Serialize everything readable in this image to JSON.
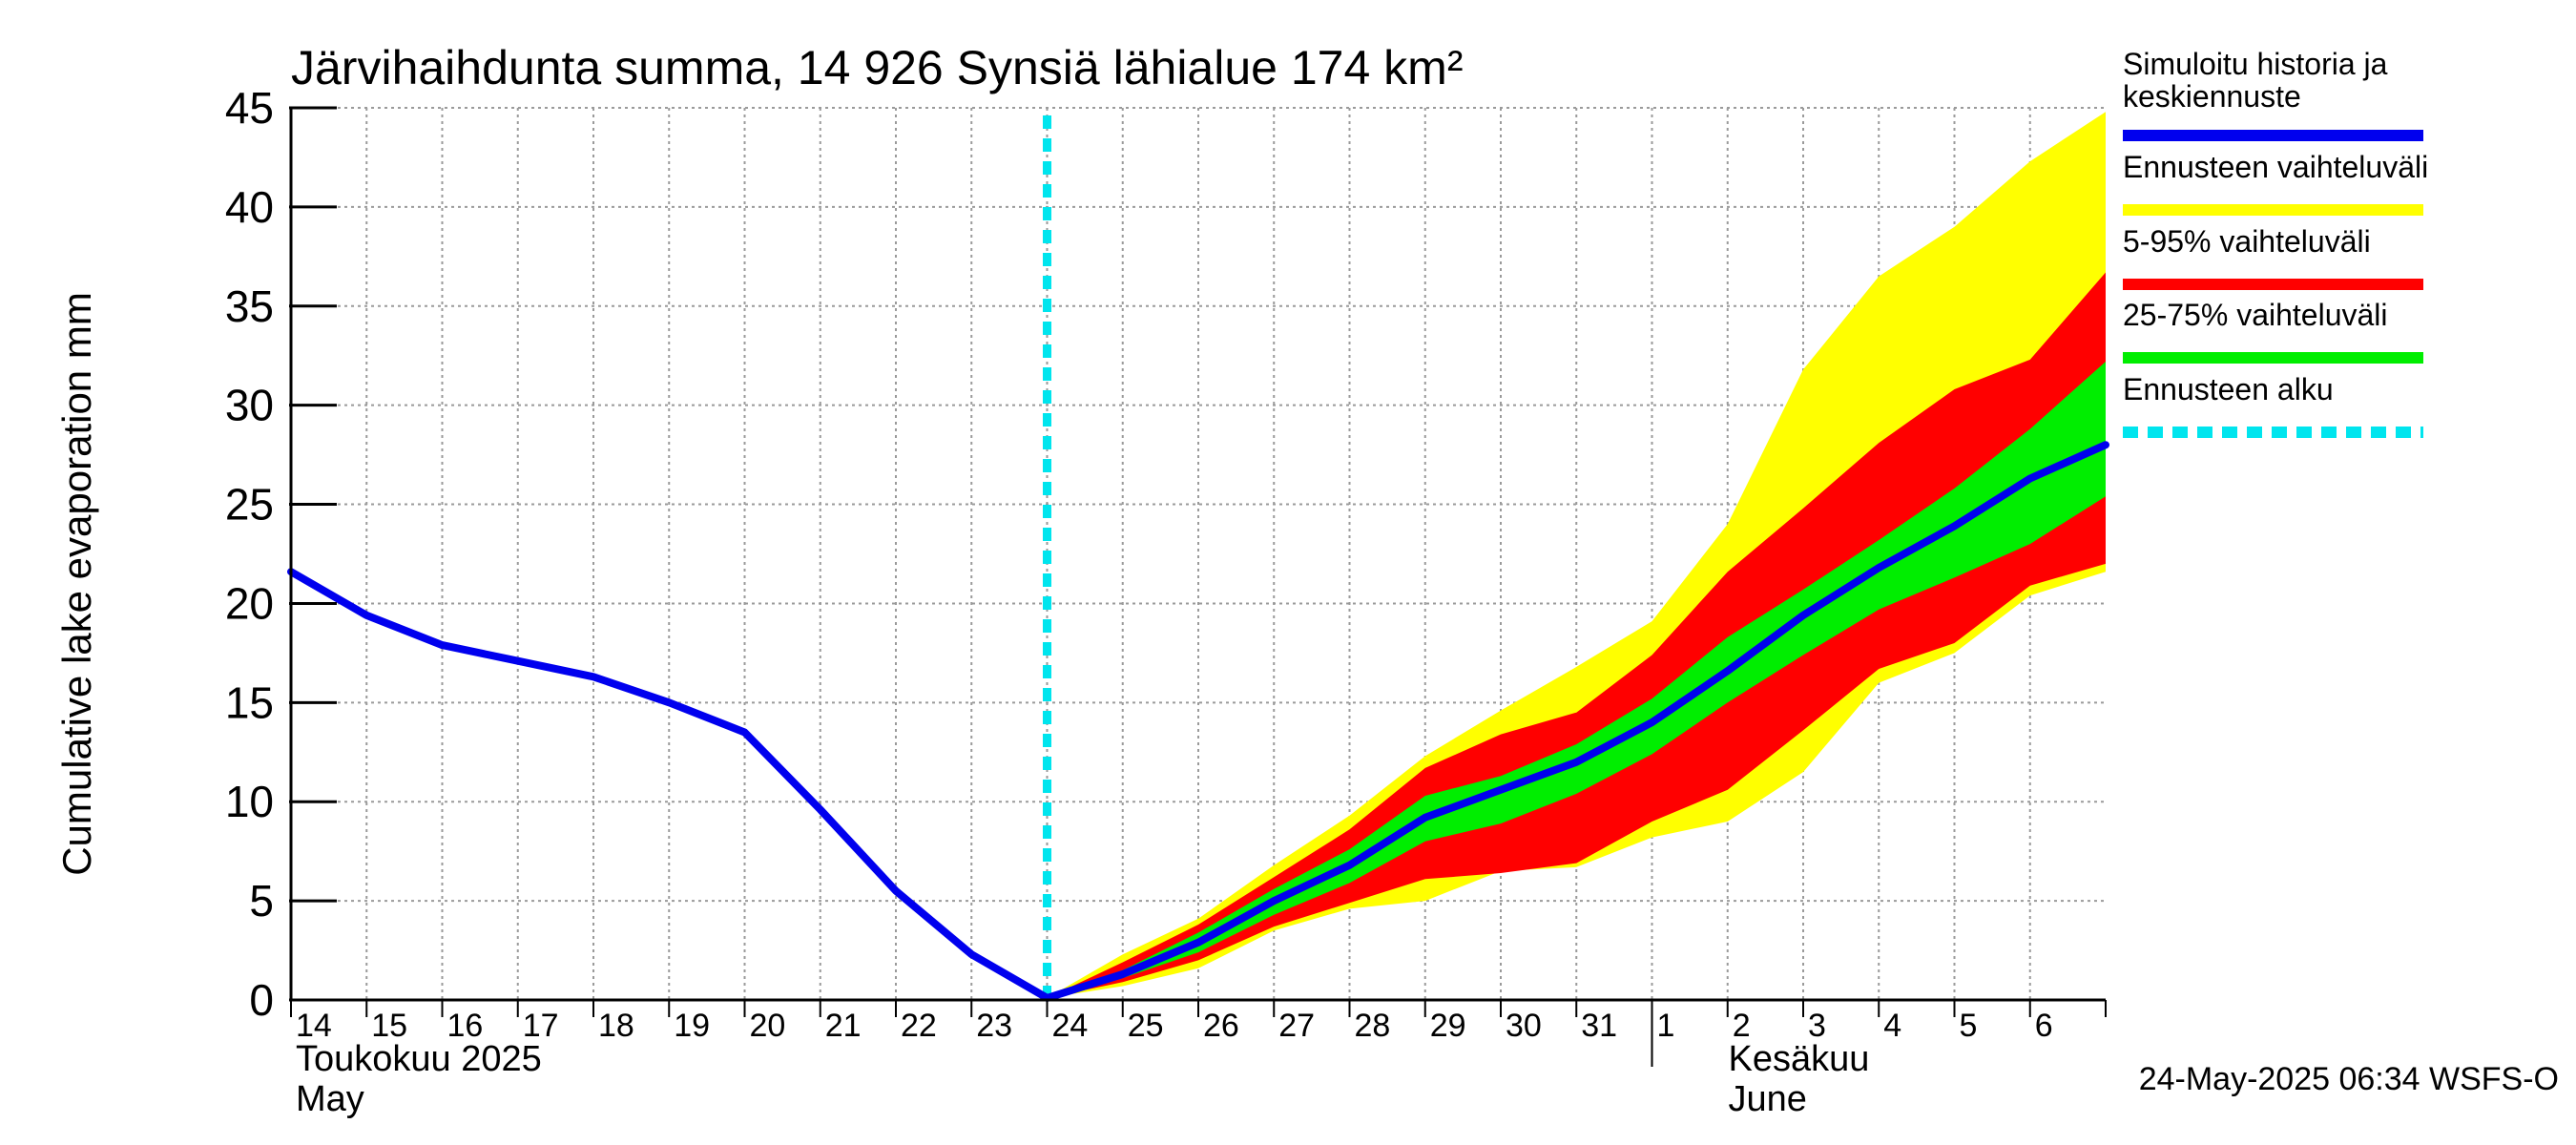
{
  "chart_data": {
    "type": "area",
    "title": "Järvihaihdunta summa, 14 926 Synsiä lähialue 174 km²",
    "ylabel": "Cumulative lake evaporation   mm",
    "xlabel": "",
    "ylim": [
      0,
      45
    ],
    "yticks": [
      0,
      5,
      10,
      15,
      20,
      25,
      30,
      35,
      40,
      45
    ],
    "x_range": [
      "2025-05-14",
      "2025-06-07"
    ],
    "x_tick_labels": [
      "14",
      "15",
      "16",
      "17",
      "18",
      "19",
      "20",
      "21",
      "22",
      "23",
      "24",
      "25",
      "26",
      "27",
      "28",
      "29",
      "30",
      "31",
      "1",
      "2",
      "3",
      "4",
      "5",
      "6"
    ],
    "month_labels": [
      {
        "fi": "Toukokuu  2025",
        "en": "May",
        "start": "2025-05-14"
      },
      {
        "fi": "Kesäkuu",
        "en": "June",
        "start": "2025-06-01"
      }
    ],
    "grid": true,
    "legend_position": "right",
    "forecast_start": "2025-05-24",
    "series": [
      {
        "name": "Simuloitu historia ja keskiennuste",
        "color": "#0000ee",
        "x": [
          "2025-05-14",
          "2025-05-15",
          "2025-05-16",
          "2025-05-17",
          "2025-05-18",
          "2025-05-19",
          "2025-05-20",
          "2025-05-21",
          "2025-05-22",
          "2025-05-23",
          "2025-05-24",
          "2025-05-25",
          "2025-05-26",
          "2025-05-27",
          "2025-05-28",
          "2025-05-29",
          "2025-05-30",
          "2025-05-31",
          "2025-06-01",
          "2025-06-02",
          "2025-06-03",
          "2025-06-04",
          "2025-06-05",
          "2025-06-06",
          "2025-06-07"
        ],
        "values": [
          21.6,
          19.4,
          17.9,
          17.1,
          16.3,
          15.0,
          13.5,
          9.6,
          5.5,
          2.3,
          0.1,
          1.3,
          2.9,
          5.0,
          6.8,
          9.2,
          10.6,
          12.0,
          14.0,
          16.6,
          19.4,
          21.8,
          23.9,
          26.3,
          28.0
        ]
      },
      {
        "name": "Ennusteen vaihteluväli",
        "color": "#ffff00",
        "x": [
          "2025-05-24",
          "2025-05-25",
          "2025-05-26",
          "2025-05-27",
          "2025-05-28",
          "2025-05-29",
          "2025-05-30",
          "2025-05-31",
          "2025-06-01",
          "2025-06-02",
          "2025-06-03",
          "2025-06-04",
          "2025-06-05",
          "2025-06-06",
          "2025-06-07"
        ],
        "lower": [
          0.1,
          0.7,
          1.6,
          3.5,
          4.6,
          5.0,
          6.5,
          6.7,
          8.2,
          9.0,
          11.5,
          16.0,
          17.5,
          20.4,
          21.6
        ],
        "upper": [
          0.1,
          2.3,
          4.1,
          6.8,
          9.3,
          12.3,
          14.6,
          16.8,
          19.1,
          24.0,
          31.8,
          36.5,
          39.0,
          42.3,
          44.8
        ]
      },
      {
        "name": "5-95% vaihteluväli",
        "color": "#ff0000",
        "x": [
          "2025-05-24",
          "2025-05-25",
          "2025-05-26",
          "2025-05-27",
          "2025-05-28",
          "2025-05-29",
          "2025-05-30",
          "2025-05-31",
          "2025-06-01",
          "2025-06-02",
          "2025-06-03",
          "2025-06-04",
          "2025-06-05",
          "2025-06-06",
          "2025-06-07"
        ],
        "lower": [
          0.1,
          0.9,
          2.0,
          3.7,
          4.9,
          6.1,
          6.4,
          6.9,
          9.0,
          10.6,
          13.6,
          16.7,
          18.0,
          20.9,
          22.0
        ],
        "upper": [
          0.1,
          1.9,
          3.8,
          6.2,
          8.6,
          11.7,
          13.4,
          14.5,
          17.4,
          21.6,
          24.8,
          28.1,
          30.8,
          32.3,
          36.7
        ]
      },
      {
        "name": "25-75% vaihteluväli",
        "color": "#00ee00",
        "x": [
          "2025-05-24",
          "2025-05-25",
          "2025-05-26",
          "2025-05-27",
          "2025-05-28",
          "2025-05-29",
          "2025-05-30",
          "2025-05-31",
          "2025-06-01",
          "2025-06-02",
          "2025-06-03",
          "2025-06-04",
          "2025-06-05",
          "2025-06-06",
          "2025-06-07"
        ],
        "lower": [
          0.1,
          1.1,
          2.4,
          4.3,
          5.9,
          8.0,
          8.9,
          10.4,
          12.4,
          15.0,
          17.4,
          19.7,
          21.3,
          23.0,
          25.4
        ],
        "upper": [
          0.1,
          1.5,
          3.4,
          5.6,
          7.6,
          10.3,
          11.3,
          12.9,
          15.2,
          18.3,
          20.7,
          23.2,
          25.8,
          28.8,
          32.2
        ]
      },
      {
        "name": "Ennusteen alku",
        "color": "#00e5ee",
        "style": "dashed"
      }
    ],
    "legend_entries": [
      {
        "label": "Simuloitu historia ja keskiennuste",
        "color": "#0000ee",
        "style": "solid"
      },
      {
        "label": "Ennusteen vaihteluväli",
        "color": "#ffff00",
        "style": "solid"
      },
      {
        "label": "5-95% vaihteluväli",
        "color": "#ff0000",
        "style": "solid"
      },
      {
        "label": "25-75% vaihteluväli",
        "color": "#00ee00",
        "style": "solid"
      },
      {
        "label": "Ennusteen alku",
        "color": "#00e5ee",
        "style": "dashed"
      }
    ]
  },
  "footer": "24-May-2025 06:34 WSFS-O"
}
